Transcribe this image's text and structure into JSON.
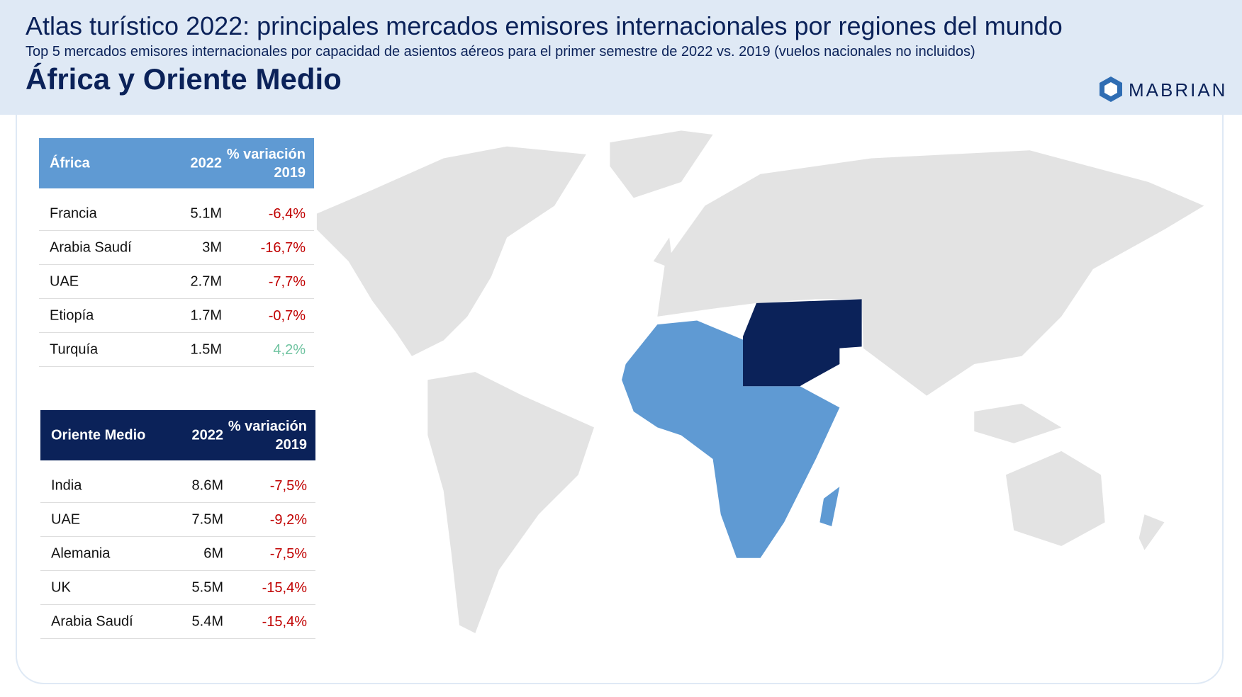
{
  "header": {
    "title": "Atlas turístico 2022: principales mercados emisores internacionales por regiones del mundo",
    "subtitle": "Top 5 mercados emisores internacionales por capacidad de asientos aéreos para el primer semestre de 2022 vs. 2019 (vuelos nacionales no incluidos)",
    "region": "África y Oriente Medio",
    "logo": "MABRIAN"
  },
  "tables": [
    {
      "header": [
        "África",
        "2022",
        "% variación 2019"
      ],
      "rows": [
        [
          "Francia",
          "5.1M",
          "-6,4%"
        ],
        [
          "Arabia Saudí",
          "3M",
          "-16,7%"
        ],
        [
          "UAE",
          "2.7M",
          "-7,7%"
        ],
        [
          "Etiopía",
          "1.7M",
          "-0,7%"
        ],
        [
          "Turquía",
          "1.5M",
          "4,2%"
        ]
      ]
    },
    {
      "header": [
        "Oriente Medio",
        "2022",
        "% variación 2019"
      ],
      "rows": [
        [
          "India",
          "8.6M",
          "-7,5%"
        ],
        [
          "UAE",
          "7.5M",
          "-9,2%"
        ],
        [
          "Alemania",
          "6M",
          "-7,5%"
        ],
        [
          "UK",
          "5.5M",
          "-15,4%"
        ],
        [
          "Arabia Saudí",
          "5.4M",
          "-15,4%"
        ]
      ]
    }
  ]
}
